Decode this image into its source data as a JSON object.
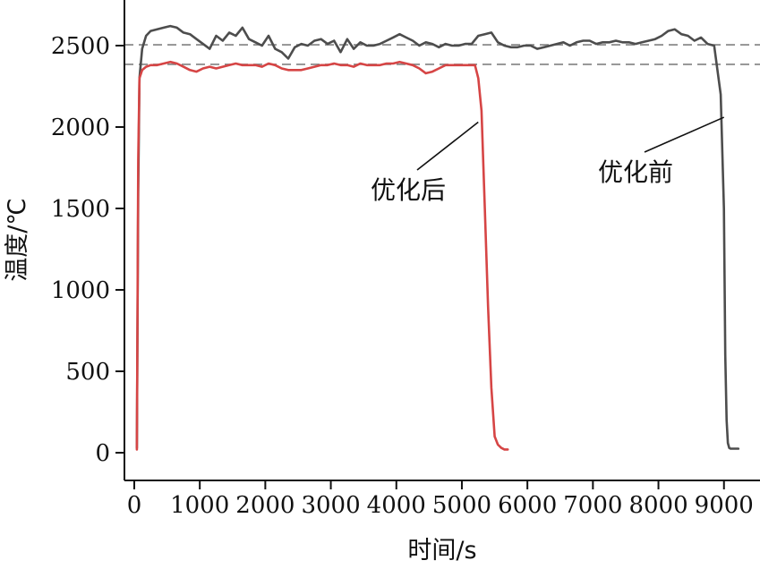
{
  "chart_data": {
    "type": "line",
    "title": "",
    "xlabel": "时间/s",
    "ylabel": "温度/℃",
    "xlim": [
      -150,
      9550
    ],
    "ylim": [
      -170,
      2780
    ],
    "xticks": [
      0,
      1000,
      2000,
      3000,
      4000,
      5000,
      6000,
      7000,
      8000,
      9000
    ],
    "yticks": [
      0,
      500,
      1000,
      1500,
      2000,
      2500
    ],
    "grid": false,
    "reference_lines": [
      {
        "y": 2505,
        "style": "dashed"
      },
      {
        "y": 2385,
        "style": "dashed"
      }
    ],
    "series": [
      {
        "name": "优化前",
        "color": "#4d4d4d",
        "x": [
          40,
          60,
          80,
          120,
          180,
          250,
          350,
          450,
          550,
          650,
          750,
          850,
          950,
          1050,
          1150,
          1250,
          1350,
          1450,
          1550,
          1650,
          1750,
          1850,
          1950,
          2050,
          2150,
          2250,
          2350,
          2450,
          2550,
          2650,
          2750,
          2850,
          2950,
          3050,
          3150,
          3250,
          3350,
          3450,
          3550,
          3650,
          3750,
          3850,
          3950,
          4050,
          4150,
          4250,
          4350,
          4450,
          4550,
          4650,
          4750,
          4850,
          4950,
          5050,
          5150,
          5250,
          5350,
          5450,
          5550,
          5650,
          5750,
          5850,
          5950,
          6050,
          6150,
          6250,
          6350,
          6450,
          6550,
          6650,
          6750,
          6850,
          6950,
          7050,
          7150,
          7250,
          7350,
          7450,
          7550,
          7650,
          7750,
          7850,
          7950,
          8050,
          8150,
          8250,
          8350,
          8450,
          8550,
          8650,
          8750,
          8850,
          8950,
          9000,
          9020,
          9040,
          9060,
          9080,
          9100,
          9150,
          9220
        ],
        "y": [
          30,
          1600,
          2300,
          2480,
          2560,
          2590,
          2600,
          2610,
          2620,
          2610,
          2580,
          2570,
          2540,
          2510,
          2480,
          2560,
          2530,
          2580,
          2560,
          2610,
          2540,
          2520,
          2500,
          2560,
          2480,
          2460,
          2420,
          2490,
          2510,
          2500,
          2530,
          2540,
          2510,
          2530,
          2460,
          2540,
          2480,
          2520,
          2500,
          2500,
          2510,
          2530,
          2550,
          2570,
          2550,
          2530,
          2500,
          2520,
          2510,
          2490,
          2510,
          2500,
          2500,
          2510,
          2510,
          2560,
          2570,
          2580,
          2520,
          2500,
          2490,
          2490,
          2500,
          2500,
          2480,
          2490,
          2500,
          2510,
          2520,
          2500,
          2520,
          2530,
          2530,
          2510,
          2520,
          2520,
          2530,
          2520,
          2520,
          2510,
          2520,
          2530,
          2540,
          2560,
          2590,
          2600,
          2570,
          2560,
          2530,
          2550,
          2510,
          2500,
          2200,
          1500,
          600,
          200,
          60,
          30,
          25,
          25,
          25
        ]
      },
      {
        "name": "优化后",
        "color": "#d64545",
        "x": [
          40,
          60,
          80,
          120,
          180,
          250,
          350,
          450,
          550,
          650,
          750,
          850,
          950,
          1050,
          1150,
          1250,
          1350,
          1450,
          1550,
          1650,
          1750,
          1850,
          1950,
          2050,
          2150,
          2250,
          2350,
          2450,
          2550,
          2650,
          2750,
          2850,
          2950,
          3050,
          3150,
          3250,
          3350,
          3450,
          3550,
          3650,
          3750,
          3850,
          3950,
          4050,
          4150,
          4250,
          4350,
          4450,
          4550,
          4650,
          4750,
          4850,
          4950,
          5050,
          5150,
          5200,
          5250,
          5300,
          5350,
          5400,
          5450,
          5500,
          5550,
          5600,
          5650,
          5700
        ],
        "y": [
          20,
          1800,
          2300,
          2350,
          2370,
          2380,
          2380,
          2390,
          2400,
          2390,
          2370,
          2350,
          2340,
          2360,
          2370,
          2360,
          2370,
          2380,
          2390,
          2380,
          2380,
          2380,
          2370,
          2390,
          2380,
          2360,
          2350,
          2350,
          2350,
          2360,
          2370,
          2380,
          2380,
          2390,
          2380,
          2380,
          2370,
          2390,
          2380,
          2380,
          2380,
          2390,
          2390,
          2400,
          2390,
          2380,
          2360,
          2330,
          2340,
          2360,
          2380,
          2380,
          2380,
          2380,
          2380,
          2380,
          2300,
          2100,
          1500,
          900,
          400,
          100,
          50,
          30,
          20,
          20
        ]
      }
    ],
    "annotations": [
      {
        "text": "优化后",
        "points_to": {
          "x": 5250,
          "y": 2030
        }
      },
      {
        "text": "优化前",
        "points_to": {
          "x": 9000,
          "y": 2060
        }
      }
    ]
  }
}
